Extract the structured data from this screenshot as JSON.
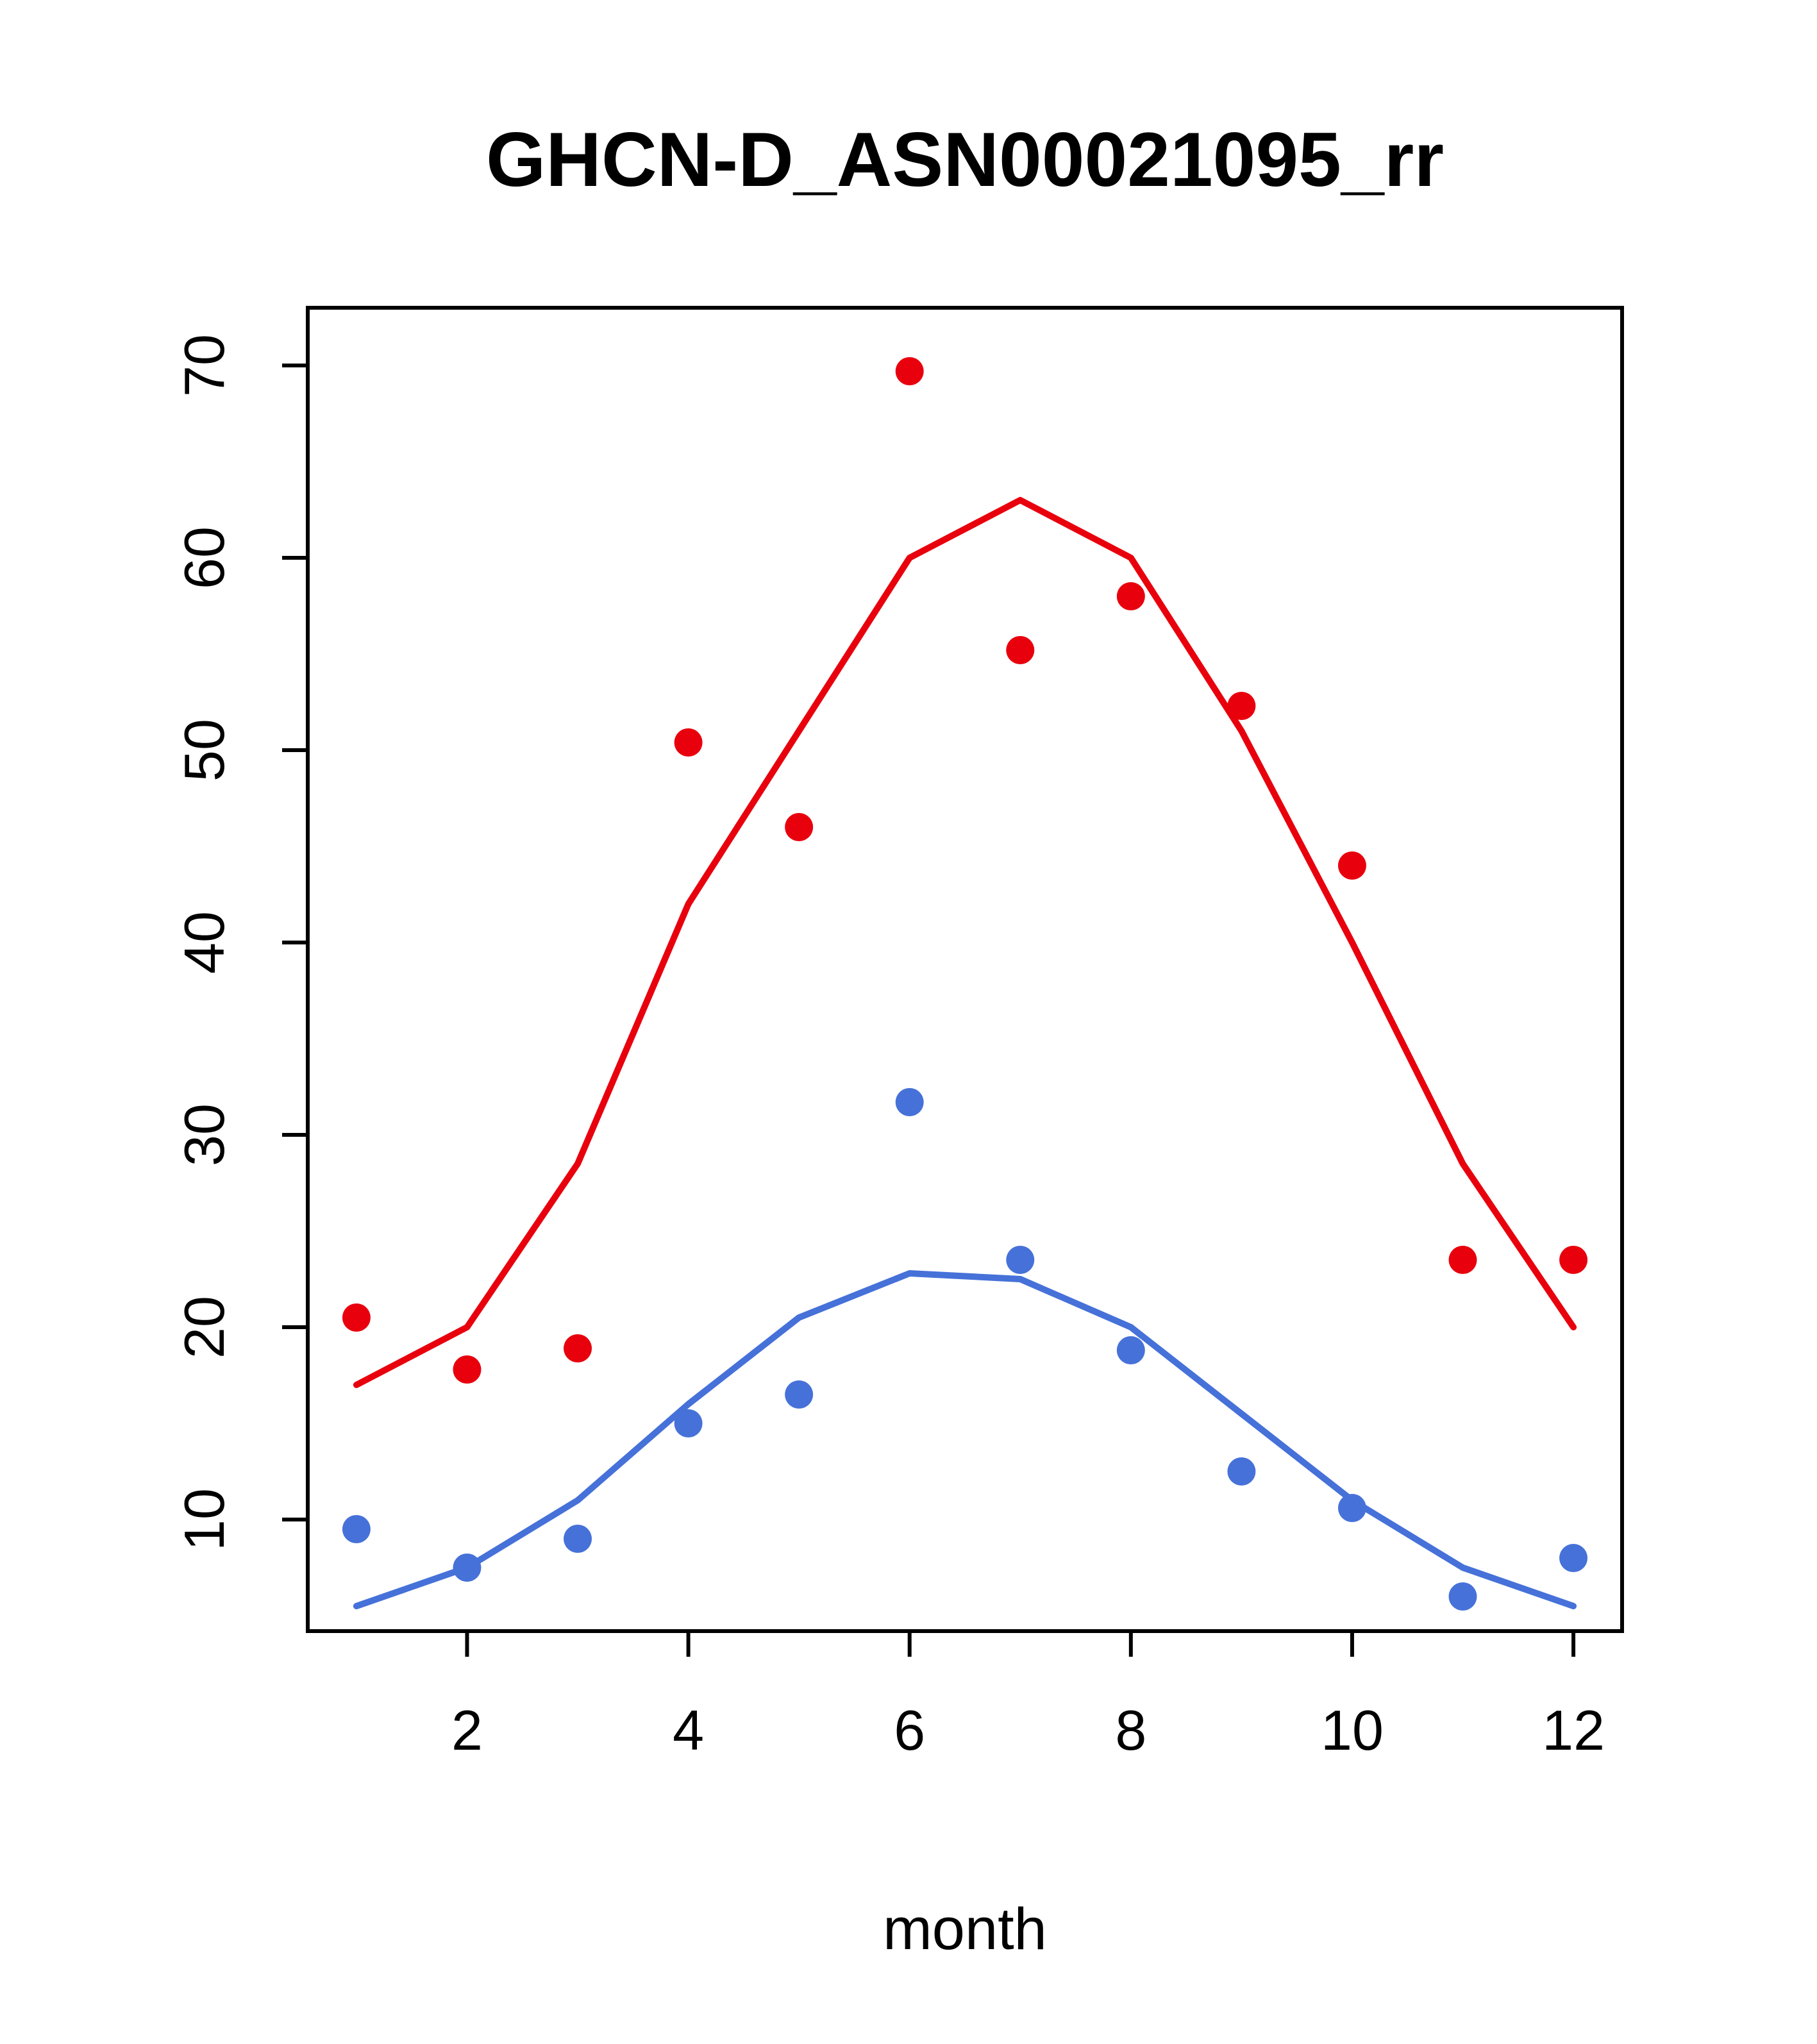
{
  "title": "GHCN-D_ASN00021095_rr",
  "chart_data": {
    "type": "scatter",
    "title": "GHCN-D_ASN00021095_rr",
    "xlabel": "month",
    "ylabel": "",
    "x": [
      1,
      2,
      3,
      4,
      5,
      6,
      7,
      8,
      9,
      10,
      11,
      12
    ],
    "xlim": [
      0.56,
      12.44
    ],
    "ylim": [
      4.2,
      73.0
    ],
    "xticks": [
      2,
      4,
      6,
      8,
      10,
      12
    ],
    "yticks": [
      10,
      20,
      30,
      40,
      50,
      60,
      70
    ],
    "grid": false,
    "legend": "none",
    "colors": {
      "red": "#e8000d",
      "blue": "#4671d9",
      "axis": "#000000"
    },
    "series": [
      {
        "name": "red-line",
        "type": "line",
        "color": "#e8000d",
        "values": [
          17.0,
          20.0,
          28.5,
          42.0,
          51.0,
          60.0,
          63.0,
          60.0,
          51.0,
          40.0,
          28.5,
          20.0
        ]
      },
      {
        "name": "blue-line",
        "type": "line",
        "color": "#4671d9",
        "values": [
          5.5,
          7.5,
          11.0,
          16.0,
          20.5,
          22.8,
          22.5,
          20.0,
          15.5,
          11.0,
          7.5,
          5.5
        ]
      },
      {
        "name": "red-points",
        "type": "points",
        "color": "#e8000d",
        "values": [
          20.5,
          17.8,
          18.9,
          50.4,
          46.0,
          69.7,
          55.2,
          58.0,
          52.3,
          44.0,
          23.5,
          23.5
        ]
      },
      {
        "name": "blue-points",
        "type": "points",
        "color": "#4671d9",
        "values": [
          9.5,
          7.5,
          9.0,
          15.0,
          16.5,
          31.7,
          23.5,
          18.8,
          12.5,
          10.6,
          6.0,
          8.0
        ]
      }
    ]
  }
}
